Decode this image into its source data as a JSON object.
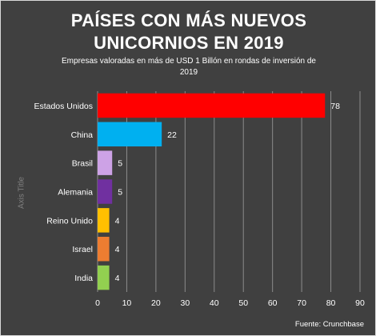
{
  "colors": {
    "background": "#404040",
    "border": "#d9d9d9",
    "text": "#ffffff",
    "gridline": "#8c8c8c",
    "axis_title": "#7f7f7f"
  },
  "chart_data": {
    "type": "bar",
    "orientation": "horizontal",
    "title_lines": [
      "PAÍSES CON MÁS NUEVOS",
      "UNICORNIOS EN 2019"
    ],
    "subtitle_lines": [
      "Empresas valoradas en más de USD 1 Billón en rondas de inversión de",
      "2019"
    ],
    "ylabel": "Axis Title",
    "xlabel": "",
    "source": "Fuente: Crunchbase",
    "categories": [
      "Estados Unidos",
      "China",
      "Brasil",
      "Alemania",
      "Reino Unido",
      "Israel",
      "India"
    ],
    "values": [
      78,
      22,
      5,
      5,
      4,
      4,
      4
    ],
    "bar_colors": [
      "#ff0000",
      "#00b0f0",
      "#cda2e6",
      "#7030a0",
      "#ffc000",
      "#ed7d31",
      "#92d050"
    ],
    "xlim": [
      0,
      90
    ],
    "xticks": [
      0,
      10,
      20,
      30,
      40,
      50,
      60,
      70,
      80,
      90
    ],
    "grid": "vertical",
    "legend": "none",
    "data_labels": true
  }
}
